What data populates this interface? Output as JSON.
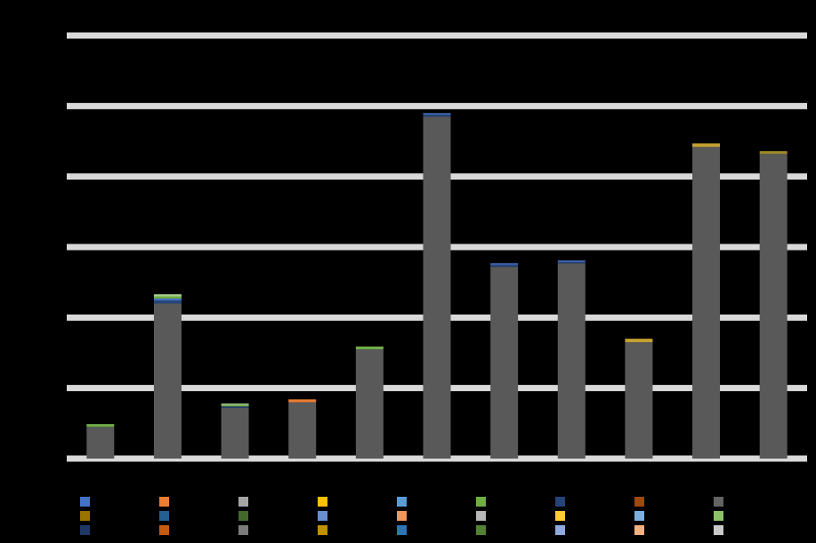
{
  "chart_data": {
    "type": "bar",
    "stacked": true,
    "title": "",
    "xlabel": "",
    "ylabel": "",
    "grid": true,
    "legend_position": "bottom",
    "categories": [
      "",
      "",
      "",
      "",
      "",
      "",
      "",
      "",
      "",
      "",
      ""
    ],
    "ylim": [
      0,
      6
    ],
    "series": [
      {
        "color": "#595959",
        "values": [
          0.45,
          2.2,
          0.72,
          0.8,
          1.55,
          4.85,
          2.72,
          2.77,
          1.65,
          4.42,
          4.32
        ]
      },
      {
        "color": "#264478",
        "values": [
          0.0,
          0.04,
          0.02,
          0.0,
          0.0,
          0.03,
          0.03,
          0.02,
          0.0,
          0.0,
          0.0
        ]
      },
      {
        "color": "#4472C4",
        "values": [
          0.0,
          0.03,
          0.0,
          0.0,
          0.0,
          0.02,
          0.02,
          0.02,
          0.0,
          0.0,
          0.0
        ]
      },
      {
        "color": "#70AD47",
        "values": [
          0.04,
          0.03,
          0.02,
          0.0,
          0.04,
          0.0,
          0.0,
          0.0,
          0.0,
          0.0,
          0.0
        ]
      },
      {
        "color": "#A9D18E",
        "values": [
          0.0,
          0.03,
          0.02,
          0.0,
          0.0,
          0.0,
          0.0,
          0.0,
          0.0,
          0.0,
          0.0
        ]
      },
      {
        "color": "#ED7D31",
        "values": [
          0.0,
          0.0,
          0.0,
          0.04,
          0.0,
          0.0,
          0.0,
          0.0,
          0.0,
          0.0,
          0.0
        ]
      },
      {
        "color": "#C5A133",
        "values": [
          0.0,
          0.0,
          0.0,
          0.0,
          0.0,
          0.0,
          0.0,
          0.0,
          0.05,
          0.05,
          0.0
        ]
      },
      {
        "color": "#9E8A2C",
        "values": [
          0.0,
          0.0,
          0.0,
          0.0,
          0.0,
          0.0,
          0.0,
          0.0,
          0.0,
          0.0,
          0.04
        ]
      }
    ],
    "legend_swatches": [
      "#4472C4",
      "#ED7D31",
      "#A5A5A5",
      "#FFC000",
      "#5B9BD5",
      "#70AD47",
      "#264478",
      "#9E480E",
      "#636363",
      "#997300",
      "#255E91",
      "#43682B",
      "#698ED0",
      "#F1975A",
      "#B7B7B7",
      "#FFCD33",
      "#7CAFDD",
      "#8CC168",
      "#203864",
      "#C55A11",
      "#7B7B7B",
      "#BF9000",
      "#2E75B6",
      "#548235",
      "#8FAADC",
      "#F4B183",
      "#C9C9C9"
    ]
  }
}
